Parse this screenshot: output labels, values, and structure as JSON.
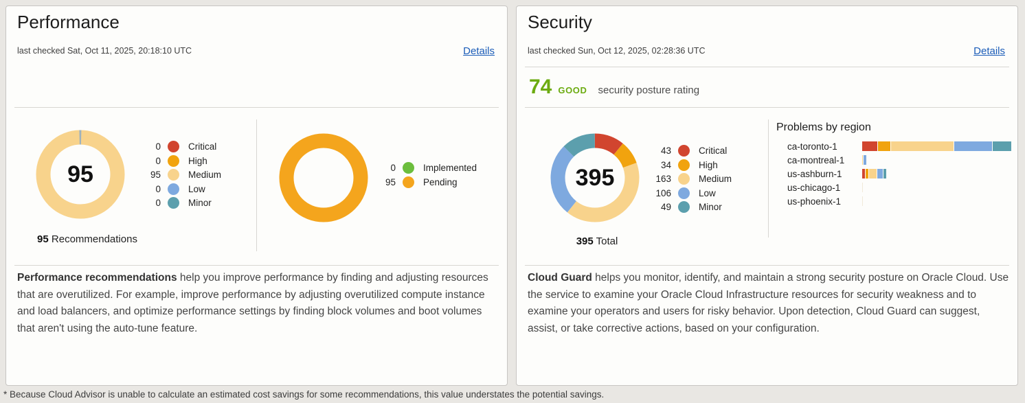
{
  "page": {
    "footnote": "* Because Cloud Advisor is unable to calculate an estimated cost savings for some recommendations, this value understates the potential savings."
  },
  "colors": {
    "critical": "#d1452f",
    "high": "#f1a30e",
    "medium": "#f8d38c",
    "low": "#7ea9df",
    "minor": "#5c9fad",
    "implemented": "#6cbe3d",
    "pending": "#f4a51d",
    "tick": "#9fb2bd",
    "good_green": "#6cab10",
    "link_blue": "#1a5cb8"
  },
  "performance": {
    "title": "Performance",
    "last_checked": "last checked Sat, Oct 11, 2025, 20:18:10 UTC",
    "details_label": "Details",
    "recommendations_donut": {
      "type": "donut",
      "center_value": "95",
      "caption_value": "95",
      "caption_label": "Recommendations",
      "top_tick": true,
      "segments": [
        {
          "label": "Critical",
          "value": 0,
          "color_key": "critical"
        },
        {
          "label": "High",
          "value": 0,
          "color_key": "high"
        },
        {
          "label": "Medium",
          "value": 95,
          "color_key": "medium"
        },
        {
          "label": "Low",
          "value": 0,
          "color_key": "low"
        },
        {
          "label": "Minor",
          "value": 0,
          "color_key": "minor"
        }
      ]
    },
    "status_donut": {
      "type": "donut",
      "center_value": "",
      "segments": [
        {
          "label": "Implemented",
          "value": 0,
          "color_key": "implemented"
        },
        {
          "label": "Pending",
          "value": 95,
          "color_key": "pending"
        }
      ]
    },
    "description_lead": "Performance recommendations",
    "description_rest": " help you improve performance by finding and adjusting resources that are overutilized. For example, improve performance by adjusting overutilized compute instance and load balancers, and optimize performance settings by finding block volumes and boot volumes that aren't using the auto-tune feature."
  },
  "security": {
    "title": "Security",
    "last_checked": "last checked Sun, Oct 12, 2025, 02:28:36 UTC",
    "details_label": "Details",
    "rating": {
      "score": "74",
      "grade": "GOOD",
      "label": "security posture rating"
    },
    "problems_donut": {
      "type": "donut",
      "center_value": "395",
      "caption_value": "395",
      "caption_label": "Total",
      "segments": [
        {
          "label": "Critical",
          "value": 43,
          "color_key": "critical"
        },
        {
          "label": "High",
          "value": 34,
          "color_key": "high"
        },
        {
          "label": "Medium",
          "value": 163,
          "color_key": "medium"
        },
        {
          "label": "Low",
          "value": 106,
          "color_key": "low"
        },
        {
          "label": "Minor",
          "value": 49,
          "color_key": "minor"
        }
      ]
    },
    "problems_by_region": {
      "title": "Problems by region",
      "type": "stacked_bar",
      "severity_order": [
        "critical",
        "high",
        "medium",
        "low",
        "minor"
      ],
      "regions": [
        {
          "name": "ca-toronto-1",
          "values": [
            36,
            28,
            143,
            86,
            44
          ]
        },
        {
          "name": "ca-montreal-1",
          "values": [
            0,
            0,
            3,
            6,
            0
          ]
        },
        {
          "name": "us-ashburn-1",
          "values": [
            7,
            6,
            17,
            14,
            5
          ]
        },
        {
          "name": "us-chicago-1",
          "values": [
            0,
            0,
            0,
            0,
            0
          ]
        },
        {
          "name": "us-phoenix-1",
          "values": [
            0,
            0,
            0,
            0,
            0
          ]
        }
      ],
      "max_total": 337
    },
    "description_lead": "Cloud Guard",
    "description_rest": " helps you monitor, identify, and maintain a strong security posture on Oracle Cloud. Use the service to examine your Oracle Cloud Infrastructure resources for security weakness and to examine your operators and users for risky behavior. Upon detection, Cloud Guard can suggest, assist, or take corrective actions, based on your configuration."
  }
}
